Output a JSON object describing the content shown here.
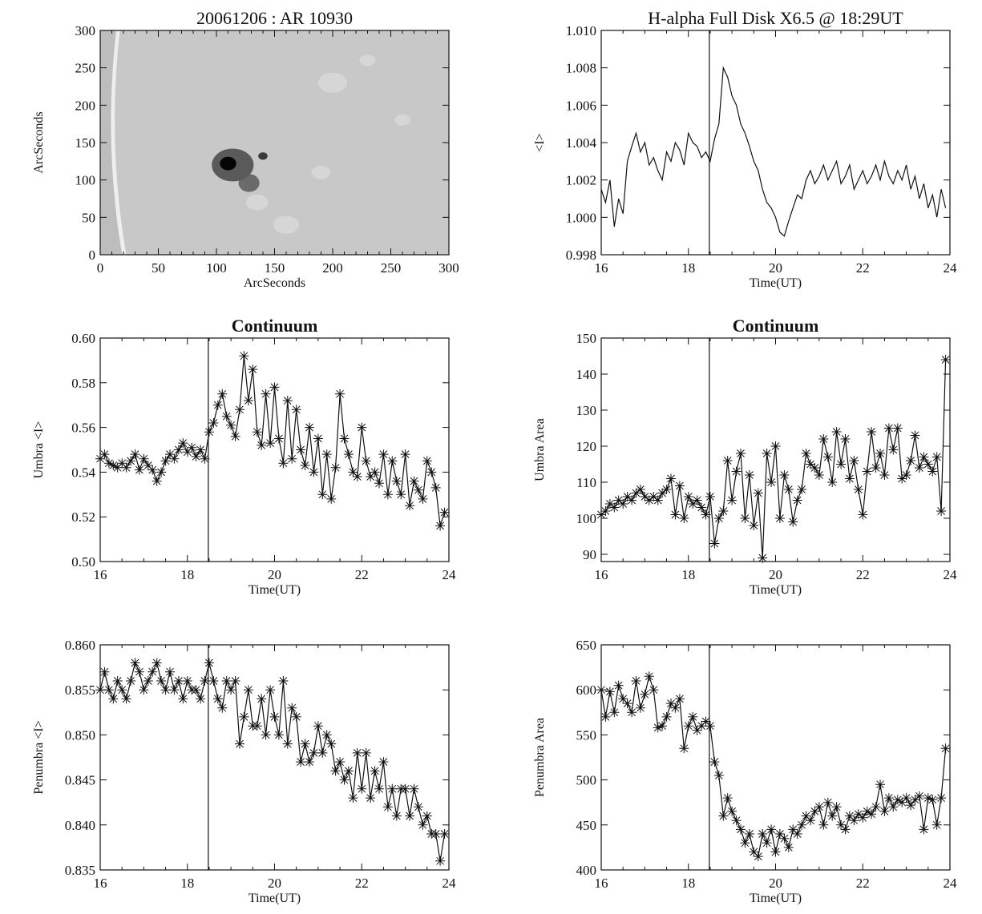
{
  "chart_data": [
    {
      "id": "image",
      "type": "heatmap",
      "title": "20061206 : AR 10930",
      "xlabel": "ArcSeconds",
      "ylabel": "ArcSeconds",
      "xlim": [
        0,
        300
      ],
      "ylim": [
        0,
        300
      ],
      "xticks": [
        0,
        50,
        100,
        150,
        200,
        250,
        300
      ],
      "yticks": [
        0,
        50,
        100,
        150,
        200,
        250,
        300
      ],
      "features": [
        {
          "name": "sunspot-umbra",
          "x": 110,
          "y": 122,
          "rx": 7,
          "ry": 9,
          "shade": "#050505"
        },
        {
          "name": "sunspot-penumbra",
          "x": 114,
          "y": 120,
          "rx": 18,
          "ry": 22,
          "shade": "#5a5a5a"
        },
        {
          "name": "pore-1",
          "x": 128,
          "y": 96,
          "rx": 9,
          "ry": 12,
          "shade": "#6a6a6a"
        },
        {
          "name": "pore-2",
          "x": 140,
          "y": 132,
          "rx": 4,
          "ry": 5,
          "shade": "#3a3a3a"
        }
      ],
      "background": "#c8c8c8"
    },
    {
      "id": "halpha",
      "type": "line",
      "title": "H-alpha Full Disk X6.5 @ 18:29UT",
      "xlabel": "Time(UT)",
      "ylabel": "<I>",
      "xlim": [
        16,
        24
      ],
      "ylim": [
        0.998,
        1.01
      ],
      "xticks": [
        16,
        18,
        20,
        22,
        24
      ],
      "yticks": [
        0.998,
        1.0,
        1.002,
        1.004,
        1.006,
        1.008,
        1.01
      ],
      "ytick_format": 3,
      "vline": 18.48,
      "markers": false,
      "x": [
        16.0,
        16.1,
        16.2,
        16.3,
        16.4,
        16.5,
        16.6,
        16.7,
        16.8,
        16.9,
        17.0,
        17.1,
        17.2,
        17.3,
        17.4,
        17.5,
        17.6,
        17.7,
        17.8,
        17.9,
        18.0,
        18.1,
        18.2,
        18.3,
        18.4,
        18.5,
        18.6,
        18.7,
        18.8,
        18.9,
        19.0,
        19.1,
        19.2,
        19.3,
        19.4,
        19.5,
        19.6,
        19.7,
        19.8,
        19.9,
        20.0,
        20.1,
        20.2,
        20.3,
        20.4,
        20.5,
        20.6,
        20.7,
        20.8,
        20.9,
        21.0,
        21.1,
        21.2,
        21.3,
        21.4,
        21.5,
        21.6,
        21.7,
        21.8,
        21.9,
        22.0,
        22.1,
        22.2,
        22.3,
        22.4,
        22.5,
        22.6,
        22.7,
        22.8,
        22.9,
        23.0,
        23.1,
        23.2,
        23.3,
        23.4,
        23.5,
        23.6,
        23.7,
        23.8,
        23.9
      ],
      "y": [
        1.0015,
        1.0008,
        1.002,
        0.9995,
        1.001,
        1.0002,
        1.003,
        1.0038,
        1.0045,
        1.0035,
        1.004,
        1.0028,
        1.0032,
        1.0025,
        1.002,
        1.0035,
        1.003,
        1.004,
        1.0036,
        1.0028,
        1.0045,
        1.004,
        1.0038,
        1.0032,
        1.0035,
        1.003,
        1.0042,
        1.005,
        1.008,
        1.0075,
        1.0065,
        1.006,
        1.005,
        1.0045,
        1.0038,
        1.003,
        1.0025,
        1.0015,
        1.0008,
        1.0005,
        1.0,
        0.9992,
        0.999,
        0.9998,
        1.0005,
        1.0012,
        1.001,
        1.002,
        1.0025,
        1.0018,
        1.0022,
        1.0028,
        1.002,
        1.0025,
        1.003,
        1.0018,
        1.0022,
        1.0028,
        1.0015,
        1.002,
        1.0025,
        1.0018,
        1.0022,
        1.0028,
        1.002,
        1.003,
        1.0022,
        1.0018,
        1.0025,
        1.002,
        1.0028,
        1.0015,
        1.0022,
        1.001,
        1.0018,
        1.0005,
        1.0012,
        1.0,
        1.0015,
        1.0005
      ]
    },
    {
      "id": "umbra-intensity",
      "type": "line",
      "title": "Continuum",
      "xlabel": "Time(UT)",
      "ylabel": "Umbra <I>",
      "xlim": [
        16,
        24
      ],
      "ylim": [
        0.5,
        0.6
      ],
      "xticks": [
        16,
        18,
        20,
        22,
        24
      ],
      "yticks": [
        0.5,
        0.52,
        0.54,
        0.56,
        0.58,
        0.6
      ],
      "ytick_format": 2,
      "vline": 18.48,
      "markers": true,
      "x": [
        16.0,
        16.1,
        16.2,
        16.3,
        16.4,
        16.5,
        16.6,
        16.7,
        16.8,
        16.9,
        17.0,
        17.1,
        17.2,
        17.3,
        17.4,
        17.5,
        17.6,
        17.7,
        17.8,
        17.9,
        18.0,
        18.1,
        18.2,
        18.3,
        18.4,
        18.5,
        18.6,
        18.7,
        18.8,
        18.9,
        19.0,
        19.1,
        19.2,
        19.3,
        19.4,
        19.5,
        19.6,
        19.7,
        19.8,
        19.9,
        20.0,
        20.1,
        20.2,
        20.3,
        20.4,
        20.5,
        20.6,
        20.7,
        20.8,
        20.9,
        21.0,
        21.1,
        21.2,
        21.3,
        21.4,
        21.5,
        21.6,
        21.7,
        21.8,
        21.9,
        22.0,
        22.1,
        22.2,
        22.3,
        22.4,
        22.5,
        22.6,
        22.7,
        22.8,
        22.9,
        23.0,
        23.1,
        23.2,
        23.3,
        23.4,
        23.5,
        23.6,
        23.7,
        23.8,
        23.9
      ],
      "y": [
        0.546,
        0.548,
        0.544,
        0.543,
        0.542,
        0.544,
        0.542,
        0.545,
        0.548,
        0.541,
        0.546,
        0.543,
        0.541,
        0.536,
        0.54,
        0.545,
        0.548,
        0.546,
        0.55,
        0.553,
        0.549,
        0.551,
        0.547,
        0.55,
        0.546,
        0.558,
        0.562,
        0.57,
        0.575,
        0.565,
        0.561,
        0.556,
        0.568,
        0.592,
        0.572,
        0.586,
        0.558,
        0.552,
        0.575,
        0.553,
        0.578,
        0.555,
        0.544,
        0.572,
        0.546,
        0.568,
        0.55,
        0.543,
        0.56,
        0.54,
        0.555,
        0.53,
        0.548,
        0.528,
        0.542,
        0.575,
        0.555,
        0.548,
        0.54,
        0.538,
        0.56,
        0.545,
        0.538,
        0.54,
        0.535,
        0.548,
        0.53,
        0.545,
        0.536,
        0.53,
        0.548,
        0.525,
        0.536,
        0.532,
        0.528,
        0.545,
        0.54,
        0.533,
        0.516,
        0.522
      ]
    },
    {
      "id": "umbra-area",
      "type": "line",
      "title": "Continuum",
      "xlabel": "Time(UT)",
      "ylabel": "Umbra Area",
      "xlim": [
        16,
        24
      ],
      "ylim": [
        88,
        150
      ],
      "xticks": [
        16,
        18,
        20,
        22,
        24
      ],
      "yticks": [
        90,
        100,
        110,
        120,
        130,
        140,
        150
      ],
      "ytick_format": 0,
      "vline": 18.48,
      "markers": true,
      "x": [
        16.0,
        16.1,
        16.2,
        16.3,
        16.4,
        16.5,
        16.6,
        16.7,
        16.8,
        16.9,
        17.0,
        17.1,
        17.2,
        17.3,
        17.4,
        17.5,
        17.6,
        17.7,
        17.8,
        17.9,
        18.0,
        18.1,
        18.2,
        18.3,
        18.4,
        18.5,
        18.6,
        18.7,
        18.8,
        18.9,
        19.0,
        19.1,
        19.2,
        19.3,
        19.4,
        19.5,
        19.6,
        19.7,
        19.8,
        19.9,
        20.0,
        20.1,
        20.2,
        20.3,
        20.4,
        20.5,
        20.6,
        20.7,
        20.8,
        20.9,
        21.0,
        21.1,
        21.2,
        21.3,
        21.4,
        21.5,
        21.6,
        21.7,
        21.8,
        21.9,
        22.0,
        22.1,
        22.2,
        22.3,
        22.4,
        22.5,
        22.6,
        22.7,
        22.8,
        22.9,
        23.0,
        23.1,
        23.2,
        23.3,
        23.4,
        23.5,
        23.6,
        23.7,
        23.8,
        23.9
      ],
      "y": [
        101,
        102,
        104,
        103,
        105,
        104,
        106,
        105,
        107,
        108,
        106,
        105,
        106,
        105,
        107,
        108,
        111,
        101,
        109,
        100,
        106,
        104,
        105,
        103,
        101,
        106,
        93,
        100,
        102,
        116,
        105,
        113,
        118,
        100,
        112,
        98,
        107,
        89,
        118,
        110,
        120,
        100,
        112,
        108,
        99,
        105,
        108,
        118,
        115,
        114,
        112,
        122,
        117,
        110,
        124,
        115,
        122,
        111,
        116,
        108,
        101,
        113,
        124,
        114,
        118,
        112,
        125,
        119,
        125,
        111,
        112,
        116,
        123,
        114,
        117,
        115,
        113,
        117,
        102,
        144
      ]
    },
    {
      "id": "penumbra-intensity",
      "type": "line",
      "title": "",
      "xlabel": "Time(UT)",
      "ylabel": "Penumbra <I>",
      "xlim": [
        16,
        24
      ],
      "ylim": [
        0.835,
        0.86
      ],
      "xticks": [
        16,
        18,
        20,
        22,
        24
      ],
      "yticks": [
        0.835,
        0.84,
        0.845,
        0.85,
        0.855,
        0.86
      ],
      "ytick_format": 3,
      "vline": 18.48,
      "markers": true,
      "x": [
        16.0,
        16.1,
        16.2,
        16.3,
        16.4,
        16.5,
        16.6,
        16.7,
        16.8,
        16.9,
        17.0,
        17.1,
        17.2,
        17.3,
        17.4,
        17.5,
        17.6,
        17.7,
        17.8,
        17.9,
        18.0,
        18.1,
        18.2,
        18.3,
        18.4,
        18.5,
        18.6,
        18.7,
        18.8,
        18.9,
        19.0,
        19.1,
        19.2,
        19.3,
        19.4,
        19.5,
        19.6,
        19.7,
        19.8,
        19.9,
        20.0,
        20.1,
        20.2,
        20.3,
        20.4,
        20.5,
        20.6,
        20.7,
        20.8,
        20.9,
        21.0,
        21.1,
        21.2,
        21.3,
        21.4,
        21.5,
        21.6,
        21.7,
        21.8,
        21.9,
        22.0,
        22.1,
        22.2,
        22.3,
        22.4,
        22.5,
        22.6,
        22.7,
        22.8,
        22.9,
        23.0,
        23.1,
        23.2,
        23.3,
        23.4,
        23.5,
        23.6,
        23.7,
        23.8,
        23.9
      ],
      "y": [
        0.855,
        0.857,
        0.855,
        0.854,
        0.856,
        0.855,
        0.854,
        0.856,
        0.858,
        0.857,
        0.855,
        0.856,
        0.857,
        0.858,
        0.856,
        0.855,
        0.857,
        0.855,
        0.856,
        0.854,
        0.856,
        0.855,
        0.855,
        0.854,
        0.856,
        0.858,
        0.856,
        0.854,
        0.853,
        0.856,
        0.855,
        0.856,
        0.849,
        0.852,
        0.855,
        0.851,
        0.851,
        0.854,
        0.85,
        0.855,
        0.852,
        0.85,
        0.856,
        0.849,
        0.853,
        0.852,
        0.847,
        0.849,
        0.847,
        0.848,
        0.851,
        0.848,
        0.85,
        0.849,
        0.846,
        0.847,
        0.845,
        0.846,
        0.843,
        0.848,
        0.844,
        0.848,
        0.843,
        0.846,
        0.844,
        0.847,
        0.842,
        0.844,
        0.841,
        0.844,
        0.844,
        0.841,
        0.844,
        0.842,
        0.84,
        0.841,
        0.839,
        0.839,
        0.836,
        0.839
      ]
    },
    {
      "id": "penumbra-area",
      "type": "line",
      "title": "",
      "xlabel": "Time(UT)",
      "ylabel": "Penumbra Area",
      "xlim": [
        16,
        24
      ],
      "ylim": [
        400,
        650
      ],
      "xticks": [
        16,
        18,
        20,
        22,
        24
      ],
      "yticks": [
        400,
        450,
        500,
        550,
        600,
        650
      ],
      "ytick_format": 0,
      "vline": 18.48,
      "markers": true,
      "x": [
        16.0,
        16.1,
        16.2,
        16.3,
        16.4,
        16.5,
        16.6,
        16.7,
        16.8,
        16.9,
        17.0,
        17.1,
        17.2,
        17.3,
        17.4,
        17.5,
        17.6,
        17.7,
        17.8,
        17.9,
        18.0,
        18.1,
        18.2,
        18.3,
        18.4,
        18.5,
        18.6,
        18.7,
        18.8,
        18.9,
        19.0,
        19.1,
        19.2,
        19.3,
        19.4,
        19.5,
        19.6,
        19.7,
        19.8,
        19.9,
        20.0,
        20.1,
        20.2,
        20.3,
        20.4,
        20.5,
        20.6,
        20.7,
        20.8,
        20.9,
        21.0,
        21.1,
        21.2,
        21.3,
        21.4,
        21.5,
        21.6,
        21.7,
        21.8,
        21.9,
        22.0,
        22.1,
        22.2,
        22.3,
        22.4,
        22.5,
        22.6,
        22.7,
        22.8,
        22.9,
        23.0,
        23.1,
        23.2,
        23.3,
        23.4,
        23.5,
        23.6,
        23.7,
        23.8,
        23.9
      ],
      "y": [
        600,
        570,
        598,
        575,
        605,
        590,
        585,
        575,
        610,
        580,
        595,
        615,
        600,
        558,
        560,
        570,
        585,
        580,
        590,
        535,
        560,
        570,
        555,
        560,
        565,
        560,
        520,
        505,
        460,
        480,
        465,
        455,
        445,
        430,
        440,
        420,
        415,
        440,
        430,
        445,
        420,
        440,
        435,
        425,
        445,
        440,
        450,
        460,
        455,
        465,
        470,
        450,
        475,
        460,
        470,
        450,
        445,
        460,
        455,
        462,
        458,
        465,
        462,
        470,
        495,
        465,
        480,
        470,
        478,
        475,
        480,
        472,
        478,
        482,
        445,
        480,
        478,
        450,
        480,
        535
      ]
    }
  ]
}
